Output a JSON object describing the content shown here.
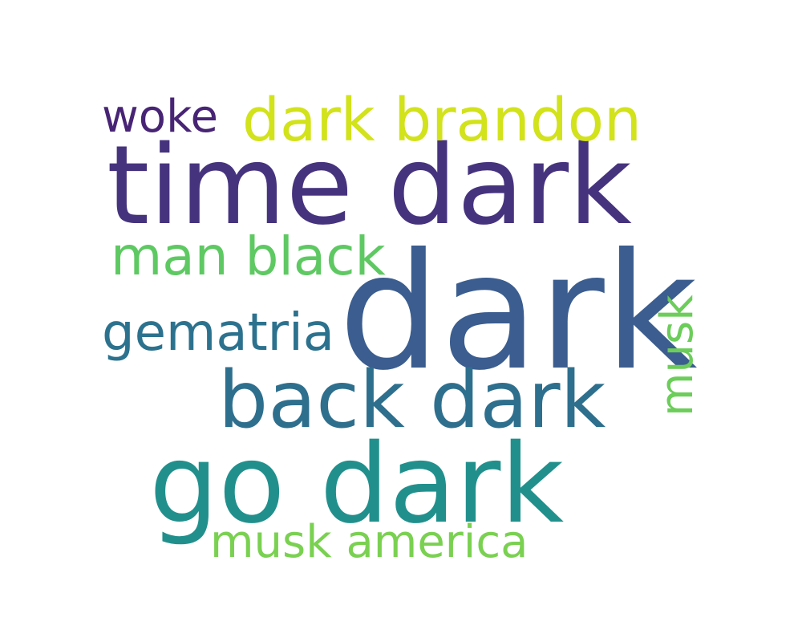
{
  "word_cloud": {
    "words": [
      {
        "text": "dark",
        "color": "#3b5d8f"
      },
      {
        "text": "time dark",
        "color": "#46337e"
      },
      {
        "text": "go dark",
        "color": "#21908d"
      },
      {
        "text": "back dark",
        "color": "#2e6f8e"
      },
      {
        "text": "dark brandon",
        "color": "#d2e21b"
      },
      {
        "text": "man black",
        "color": "#5ec962"
      },
      {
        "text": "gematria",
        "color": "#2c728e"
      },
      {
        "text": "musk america",
        "color": "#7ad151"
      },
      {
        "text": "woke",
        "color": "#482475"
      },
      {
        "text": "musk",
        "color": "#6ccd5a"
      }
    ]
  }
}
